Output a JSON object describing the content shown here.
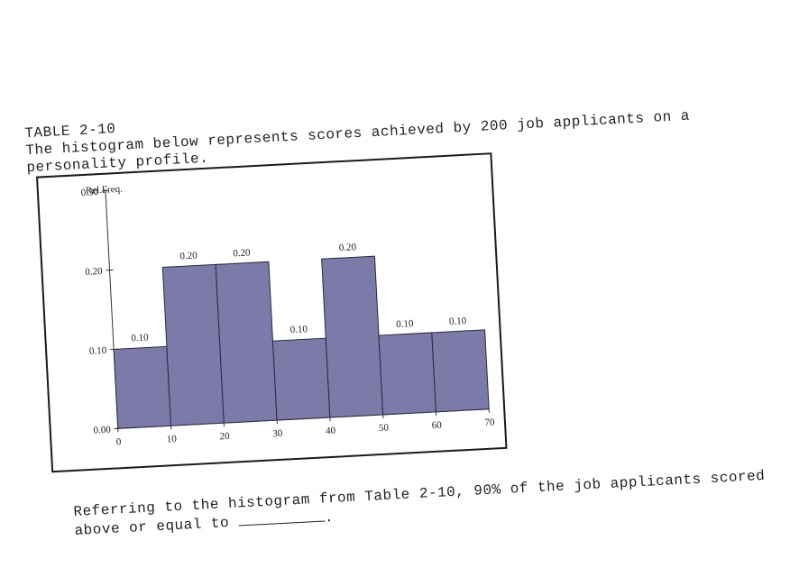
{
  "text": {
    "table_label": "TABLE 2-10",
    "intro": "The histogram below represents scores achieved by 200 job applicants on a personality profile.",
    "question_part1": "Referring to the histogram from Table 2-10, 90% of the job applicants scored above or equal to",
    "question_end": "."
  },
  "colors": {
    "bar_fill": "#7b7aa8",
    "bar_stroke": "#2a2a3a",
    "axis": "#333333",
    "text": "#222222"
  },
  "chart_data": {
    "type": "bar",
    "ylabel": "Rel.Freq.",
    "xlabel": "",
    "bins": [
      [
        0,
        10
      ],
      [
        10,
        20
      ],
      [
        20,
        30
      ],
      [
        30,
        40
      ],
      [
        40,
        50
      ],
      [
        50,
        60
      ],
      [
        60,
        70
      ]
    ],
    "values": [
      0.1,
      0.2,
      0.2,
      0.1,
      0.2,
      0.1,
      0.1
    ],
    "data_labels": [
      "0.10",
      "0.20",
      "0.20",
      "0.10",
      "0.20",
      "0.10",
      "0.10"
    ],
    "x_ticks": [
      "0",
      "10",
      "20",
      "30",
      "40",
      "50",
      "60",
      "70"
    ],
    "y_ticks": [
      "0.00",
      "0.10",
      "0.20",
      "0.30"
    ],
    "xlim": [
      0,
      70
    ],
    "ylim": [
      0,
      0.3
    ],
    "grid": false,
    "legend": "none"
  }
}
